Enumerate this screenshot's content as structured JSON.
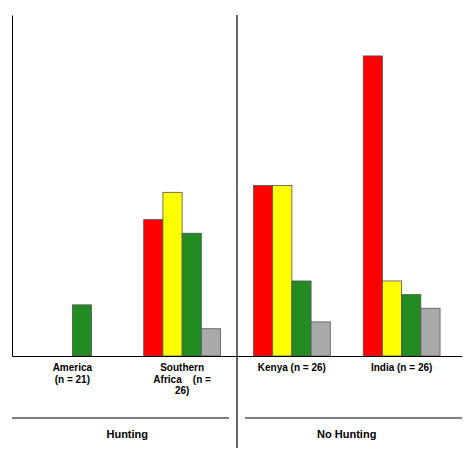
{
  "chart_data": {
    "type": "bar",
    "categories": [
      "America\n(n = 21)",
      "Southern\nAfrica    (n =\n26)",
      "Kenya (n = 26)",
      "India (n = 26)"
    ],
    "series": [
      {
        "color": "#FF0000",
        "values": [
          null,
          40,
          50,
          88
        ]
      },
      {
        "color": "#FFFF00",
        "values": [
          null,
          48,
          50,
          22
        ]
      },
      {
        "color": "#228B22",
        "values": [
          15,
          36,
          22,
          18
        ]
      },
      {
        "color": "#A9A9A9",
        "values": [
          null,
          8,
          10,
          14
        ]
      }
    ],
    "ylim": [
      0,
      100
    ],
    "tick_labels": "x",
    "grid": false,
    "annotations": [
      "Hunting",
      "No Hunting"
    ]
  }
}
